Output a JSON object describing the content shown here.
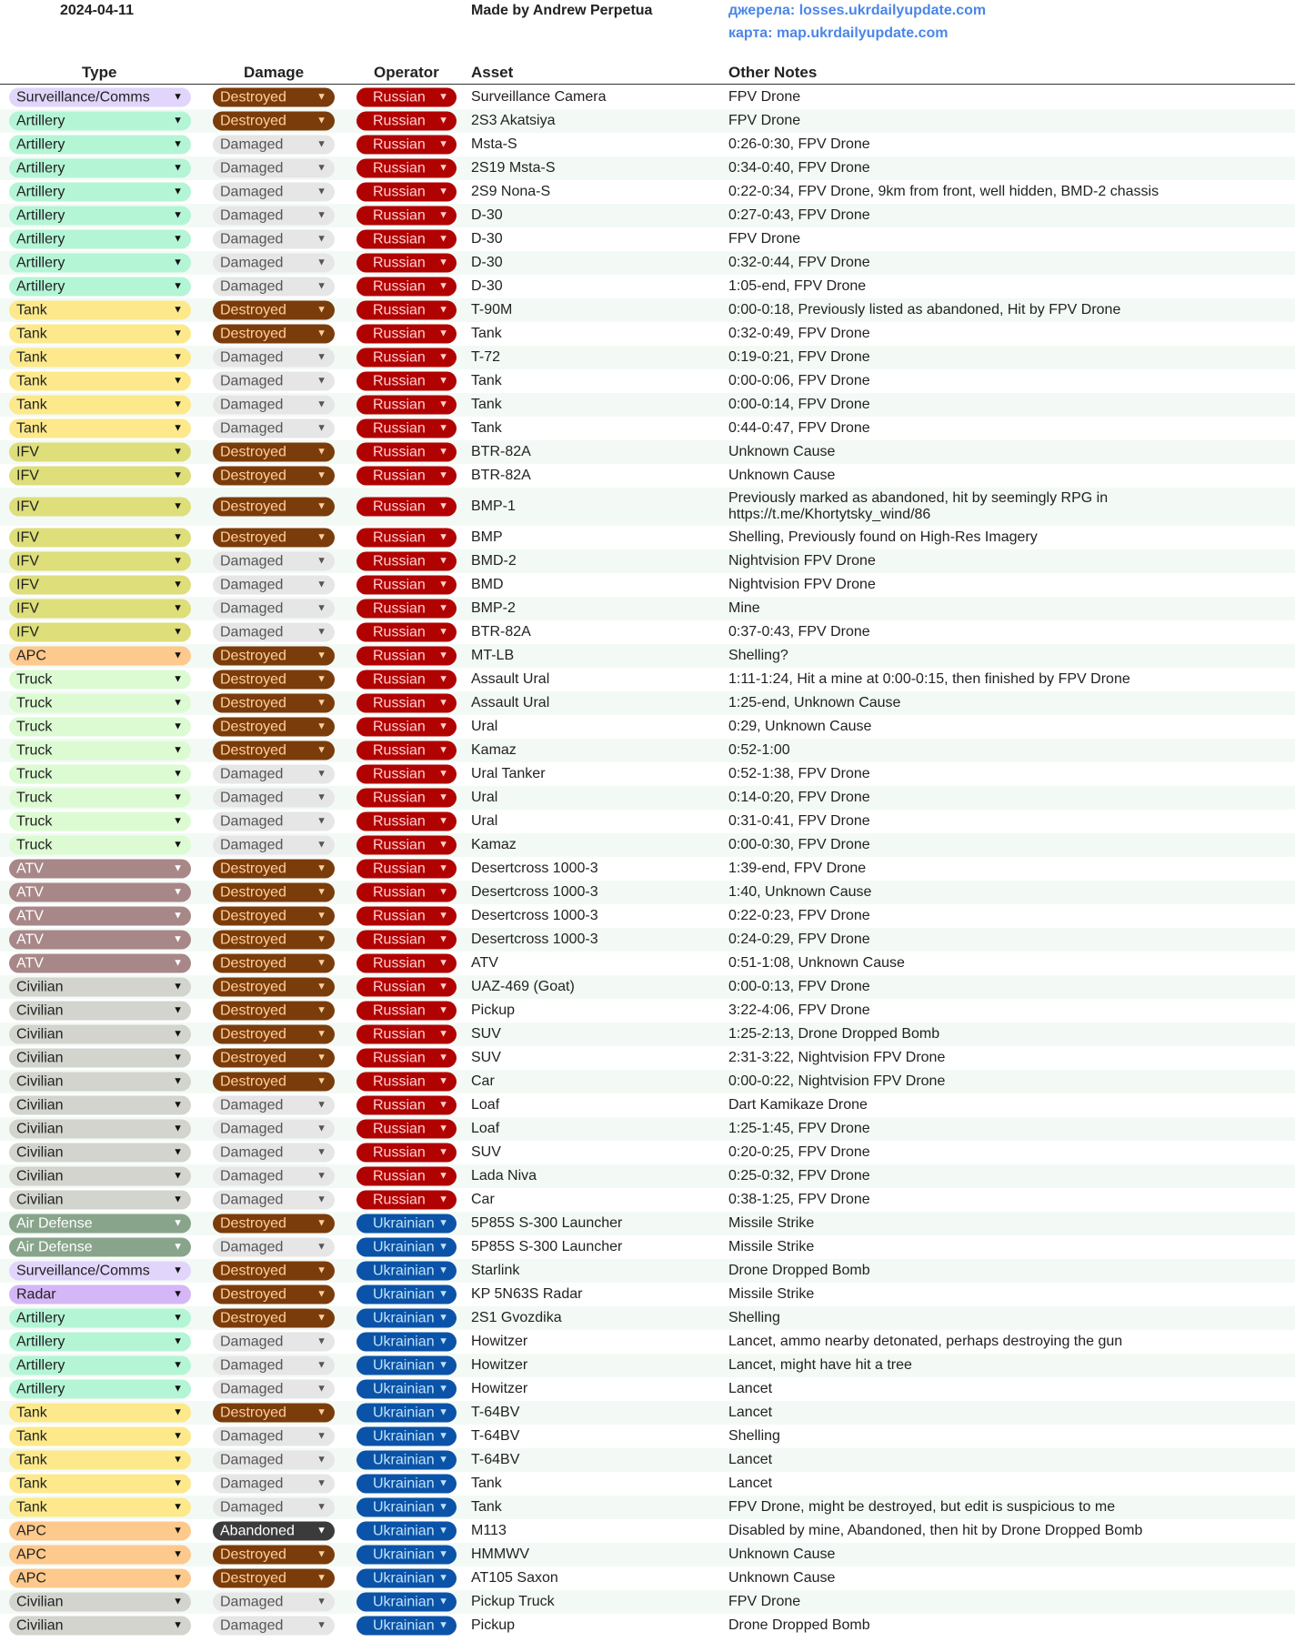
{
  "header": {
    "date": "2024-04-11",
    "author": "Made by Andrew Perpetua",
    "sources_link": "джерела: losses.ukrdailyupdate.com",
    "map_link": "карта: map.ukrdailyupdate.com"
  },
  "columns": {
    "type": "Type",
    "damage": "Damage",
    "operator": "Operator",
    "asset": "Asset",
    "notes": "Other Notes"
  },
  "colors": {
    "type": {
      "Surveillance/Comms": [
        "#e1d5fb",
        "#222"
      ],
      "Artillery": [
        "#b4f5d6",
        "#222"
      ],
      "Tank": [
        "#fde98b",
        "#222"
      ],
      "IFV": [
        "#dede7a",
        "#222"
      ],
      "APC": [
        "#fec98c",
        "#222"
      ],
      "Truck": [
        "#dcfbd2",
        "#222"
      ],
      "ATV": [
        "#a88788",
        "#ffffff"
      ],
      "Civilian": [
        "#d2d4cd",
        "#222"
      ],
      "Air Defense": [
        "#88a58c",
        "#ffffff"
      ],
      "Radar": [
        "#d5b6f7",
        "#222"
      ]
    },
    "damage": {
      "Destroyed": [
        "#7b3c0b",
        "#ffcf9a"
      ],
      "Damaged": [
        "#e6e6e6",
        "#555555"
      ],
      "Abandoned": [
        "#3b3b3b",
        "#ffffff"
      ]
    },
    "operator": {
      "Russian": [
        "#b10202",
        "#ffd0d0"
      ],
      "Ukrainian": [
        "#0b53a8",
        "#c0e2f7"
      ]
    }
  },
  "rows": [
    [
      "Surveillance/Comms",
      "Destroyed",
      "Russian",
      "Surveillance Camera",
      "FPV Drone"
    ],
    [
      "Artillery",
      "Destroyed",
      "Russian",
      "2S3 Akatsiya",
      "FPV Drone"
    ],
    [
      "Artillery",
      "Damaged",
      "Russian",
      "Msta-S",
      "0:26-0:30, FPV Drone"
    ],
    [
      "Artillery",
      "Damaged",
      "Russian",
      "2S19 Msta-S",
      "0:34-0:40, FPV Drone"
    ],
    [
      "Artillery",
      "Damaged",
      "Russian",
      "2S9 Nona-S",
      "0:22-0:34, FPV Drone, 9km from front, well hidden, BMD-2 chassis"
    ],
    [
      "Artillery",
      "Damaged",
      "Russian",
      "D-30",
      "0:27-0:43, FPV Drone"
    ],
    [
      "Artillery",
      "Damaged",
      "Russian",
      "D-30",
      "FPV Drone"
    ],
    [
      "Artillery",
      "Damaged",
      "Russian",
      "D-30",
      "0:32-0:44, FPV Drone"
    ],
    [
      "Artillery",
      "Damaged",
      "Russian",
      "D-30",
      "1:05-end, FPV Drone"
    ],
    [
      "Tank",
      "Destroyed",
      "Russian",
      "T-90M",
      "0:00-0:18, Previously listed as abandoned, Hit by FPV Drone"
    ],
    [
      "Tank",
      "Destroyed",
      "Russian",
      "Tank",
      "0:32-0:49, FPV Drone"
    ],
    [
      "Tank",
      "Damaged",
      "Russian",
      "T-72",
      "0:19-0:21, FPV Drone"
    ],
    [
      "Tank",
      "Damaged",
      "Russian",
      "Tank",
      "0:00-0:06, FPV Drone"
    ],
    [
      "Tank",
      "Damaged",
      "Russian",
      "Tank",
      "0:00-0:14, FPV Drone"
    ],
    [
      "Tank",
      "Damaged",
      "Russian",
      "Tank",
      "0:44-0:47, FPV Drone"
    ],
    [
      "IFV",
      "Destroyed",
      "Russian",
      "BTR-82A",
      "Unknown Cause"
    ],
    [
      "IFV",
      "Destroyed",
      "Russian",
      "BTR-82A",
      "Unknown Cause"
    ],
    [
      "IFV",
      "Destroyed",
      "Russian",
      "BMP-1",
      "Previously marked as abandoned, hit by seemingly RPG in https://t.me/Khortytsky_wind/86"
    ],
    [
      "IFV",
      "Destroyed",
      "Russian",
      "BMP",
      "Shelling, Previously found on High-Res Imagery"
    ],
    [
      "IFV",
      "Damaged",
      "Russian",
      "BMD-2",
      "Nightvision FPV Drone"
    ],
    [
      "IFV",
      "Damaged",
      "Russian",
      "BMD",
      "Nightvision FPV Drone"
    ],
    [
      "IFV",
      "Damaged",
      "Russian",
      "BMP-2",
      "Mine"
    ],
    [
      "IFV",
      "Damaged",
      "Russian",
      "BTR-82A",
      "0:37-0:43, FPV Drone"
    ],
    [
      "APC",
      "Destroyed",
      "Russian",
      "MT-LB",
      "Shelling?"
    ],
    [
      "Truck",
      "Destroyed",
      "Russian",
      "Assault Ural",
      "1:11-1:24, Hit a mine at 0:00-0:15, then finished by FPV Drone"
    ],
    [
      "Truck",
      "Destroyed",
      "Russian",
      "Assault Ural",
      "1:25-end, Unknown Cause"
    ],
    [
      "Truck",
      "Destroyed",
      "Russian",
      "Ural",
      "0:29, Unknown Cause"
    ],
    [
      "Truck",
      "Destroyed",
      "Russian",
      "Kamaz",
      "0:52-1:00"
    ],
    [
      "Truck",
      "Damaged",
      "Russian",
      "Ural Tanker",
      "0:52-1:38, FPV Drone"
    ],
    [
      "Truck",
      "Damaged",
      "Russian",
      "Ural",
      "0:14-0:20, FPV Drone"
    ],
    [
      "Truck",
      "Damaged",
      "Russian",
      "Ural",
      "0:31-0:41, FPV Drone"
    ],
    [
      "Truck",
      "Damaged",
      "Russian",
      "Kamaz",
      "0:00-0:30, FPV Drone"
    ],
    [
      "ATV",
      "Destroyed",
      "Russian",
      "Desertcross 1000-3",
      "1:39-end, FPV Drone"
    ],
    [
      "ATV",
      "Destroyed",
      "Russian",
      "Desertcross 1000-3",
      "1:40, Unknown Cause"
    ],
    [
      "ATV",
      "Destroyed",
      "Russian",
      "Desertcross 1000-3",
      "0:22-0:23, FPV Drone"
    ],
    [
      "ATV",
      "Destroyed",
      "Russian",
      "Desertcross 1000-3",
      "0:24-0:29, FPV Drone"
    ],
    [
      "ATV",
      "Destroyed",
      "Russian",
      "ATV",
      "0:51-1:08, Unknown Cause"
    ],
    [
      "Civilian",
      "Destroyed",
      "Russian",
      "UAZ-469 (Goat)",
      "0:00-0:13, FPV Drone"
    ],
    [
      "Civilian",
      "Destroyed",
      "Russian",
      "Pickup",
      "3:22-4:06, FPV Drone"
    ],
    [
      "Civilian",
      "Destroyed",
      "Russian",
      "SUV",
      "1:25-2:13, Drone Dropped Bomb"
    ],
    [
      "Civilian",
      "Destroyed",
      "Russian",
      "SUV",
      "2:31-3:22, Nightvision FPV Drone"
    ],
    [
      "Civilian",
      "Destroyed",
      "Russian",
      "Car",
      "0:00-0:22, Nightvision FPV Drone"
    ],
    [
      "Civilian",
      "Damaged",
      "Russian",
      "Loaf",
      "Dart Kamikaze Drone"
    ],
    [
      "Civilian",
      "Damaged",
      "Russian",
      "Loaf",
      "1:25-1:45, FPV Drone"
    ],
    [
      "Civilian",
      "Damaged",
      "Russian",
      "SUV",
      "0:20-0:25, FPV Drone"
    ],
    [
      "Civilian",
      "Damaged",
      "Russian",
      "Lada Niva",
      "0:25-0:32, FPV Drone"
    ],
    [
      "Civilian",
      "Damaged",
      "Russian",
      "Car",
      "0:38-1:25, FPV Drone"
    ],
    [
      "Air Defense",
      "Destroyed",
      "Ukrainian",
      "5P85S S-300 Launcher",
      "Missile Strike"
    ],
    [
      "Air Defense",
      "Damaged",
      "Ukrainian",
      "5P85S S-300 Launcher",
      "Missile Strike"
    ],
    [
      "Surveillance/Comms",
      "Destroyed",
      "Ukrainian",
      "Starlink",
      "Drone Dropped Bomb"
    ],
    [
      "Radar",
      "Destroyed",
      "Ukrainian",
      "KP 5N63S Radar",
      "Missile Strike"
    ],
    [
      "Artillery",
      "Destroyed",
      "Ukrainian",
      "2S1 Gvozdika",
      "Shelling"
    ],
    [
      "Artillery",
      "Damaged",
      "Ukrainian",
      "Howitzer",
      "Lancet, ammo nearby detonated, perhaps destroying the gun"
    ],
    [
      "Artillery",
      "Damaged",
      "Ukrainian",
      "Howitzer",
      "Lancet, might have hit a tree"
    ],
    [
      "Artillery",
      "Damaged",
      "Ukrainian",
      "Howitzer",
      "Lancet"
    ],
    [
      "Tank",
      "Destroyed",
      "Ukrainian",
      "T-64BV",
      "Lancet"
    ],
    [
      "Tank",
      "Damaged",
      "Ukrainian",
      "T-64BV",
      "Shelling"
    ],
    [
      "Tank",
      "Damaged",
      "Ukrainian",
      "T-64BV",
      "Lancet"
    ],
    [
      "Tank",
      "Damaged",
      "Ukrainian",
      "Tank",
      "Lancet"
    ],
    [
      "Tank",
      "Damaged",
      "Ukrainian",
      "Tank",
      "FPV Drone, might be destroyed, but edit is suspicious to me"
    ],
    [
      "APC",
      "Abandoned",
      "Ukrainian",
      "M113",
      "Disabled by mine, Abandoned, then hit by Drone Dropped Bomb"
    ],
    [
      "APC",
      "Destroyed",
      "Ukrainian",
      "HMMWV",
      "Unknown Cause"
    ],
    [
      "APC",
      "Destroyed",
      "Ukrainian",
      "AT105 Saxon",
      "Unknown Cause"
    ],
    [
      "Civilian",
      "Damaged",
      "Ukrainian",
      "Pickup Truck",
      "FPV Drone"
    ],
    [
      "Civilian",
      "Damaged",
      "Ukrainian",
      "Pickup",
      "Drone Dropped Bomb"
    ]
  ]
}
